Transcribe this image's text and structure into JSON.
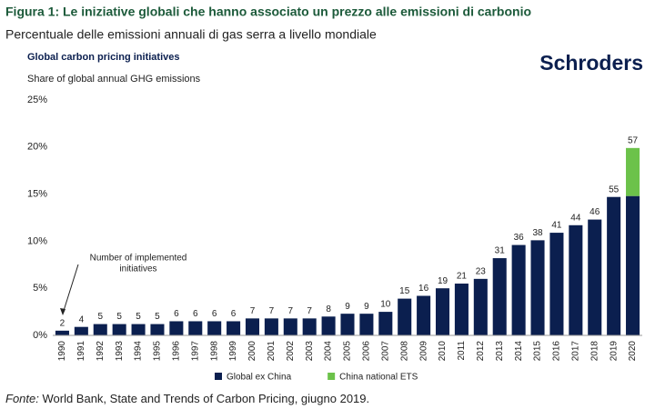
{
  "header": {
    "title": "Figura 1: Le iniziative globali che hanno associato un prezzo alle emissioni di carbonio",
    "subtitle": "Percentuale delle emissioni annuali di gas serra a livello mondiale"
  },
  "logo": "Schroders",
  "chart_data": {
    "type": "stacked_bar",
    "title": "Global carbon pricing initiatives",
    "subtitle": "Share of global annual GHG emissions",
    "categories": [
      "1990",
      "1991",
      "1992",
      "1993",
      "1994",
      "1995",
      "1996",
      "1997",
      "1998",
      "1999",
      "2000",
      "2001",
      "2002",
      "2003",
      "2004",
      "2005",
      "2006",
      "2007",
      "2008",
      "2009",
      "2010",
      "2011",
      "2012",
      "2013",
      "2014",
      "2015",
      "2016",
      "2017",
      "2018",
      "2019",
      "2020"
    ],
    "series": [
      {
        "name": "Global ex China",
        "color": "#0b1f4f",
        "values": [
          0.5,
          0.9,
          1.2,
          1.2,
          1.2,
          1.2,
          1.5,
          1.5,
          1.5,
          1.5,
          1.8,
          1.8,
          1.8,
          1.8,
          2.0,
          2.3,
          2.3,
          2.5,
          3.9,
          4.2,
          5.0,
          5.5,
          6.0,
          8.2,
          9.6,
          10.1,
          10.9,
          11.7,
          12.3,
          14.7,
          14.8
        ]
      },
      {
        "name": "China national ETS",
        "color": "#6cc24a",
        "values": [
          0,
          0,
          0,
          0,
          0,
          0,
          0,
          0,
          0,
          0,
          0,
          0,
          0,
          0,
          0,
          0,
          0,
          0,
          0,
          0,
          0,
          0,
          0,
          0,
          0,
          0,
          0,
          0,
          0,
          0,
          5.1
        ]
      }
    ],
    "initiative_counts": [
      2,
      4,
      5,
      5,
      5,
      5,
      6,
      6,
      6,
      6,
      7,
      7,
      7,
      7,
      8,
      9,
      9,
      10,
      15,
      16,
      19,
      21,
      23,
      31,
      36,
      38,
      41,
      44,
      46,
      55,
      57
    ],
    "annotation": {
      "text_lines": [
        "Number of implemented",
        "initiatives"
      ]
    },
    "ylim": [
      0,
      25
    ],
    "yticks": [
      {
        "value": 0,
        "label": "0%"
      },
      {
        "value": 5,
        "label": "5%"
      },
      {
        "value": 10,
        "label": "10%"
      },
      {
        "value": 15,
        "label": "15%"
      },
      {
        "value": 20,
        "label": "20%"
      },
      {
        "value": 25,
        "label": "25%"
      }
    ],
    "grid": false,
    "legend": "bottom"
  },
  "source": {
    "label": "Fonte:",
    "text": " World Bank, State and Trends of Carbon Pricing, giugno 2019."
  }
}
